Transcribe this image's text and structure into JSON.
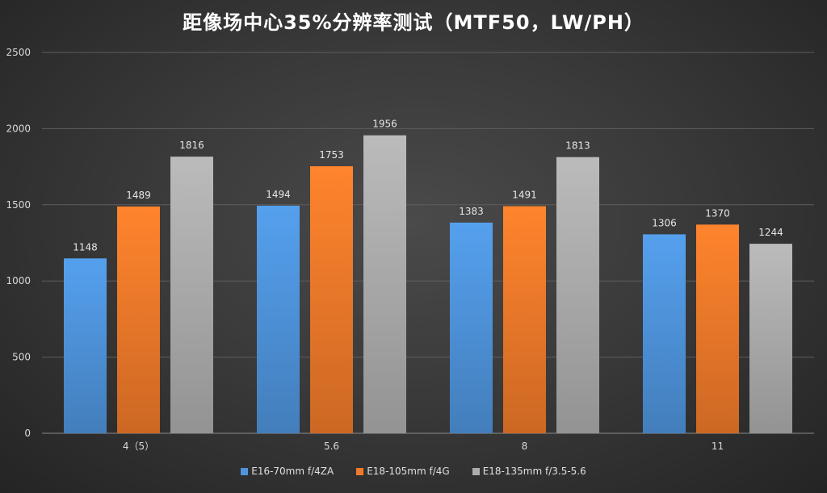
{
  "chart_data": {
    "type": "bar",
    "title": "距像场中心35%分辨率测试（MTF50，LW/PH）",
    "xlabel": "",
    "ylabel": "",
    "categories": [
      "4（5）",
      "5.6",
      "8",
      "11"
    ],
    "series": [
      {
        "name": "E16-70mm f/4ZA",
        "color": "#4f94dc",
        "values": [
          1148,
          1494,
          1383,
          1306
        ]
      },
      {
        "name": "E18-105mm f/4G",
        "color": "#f07a2a",
        "values": [
          1489,
          1753,
          1491,
          1370
        ]
      },
      {
        "name": "E18-135mm f/3.5-5.6",
        "color": "#adadad",
        "values": [
          1816,
          1956,
          1813,
          1244
        ]
      }
    ],
    "ylim": [
      0,
      2500
    ],
    "yticks": [
      0,
      500,
      1000,
      1500,
      2000,
      2500
    ],
    "grid": true,
    "legend": "bottom"
  }
}
